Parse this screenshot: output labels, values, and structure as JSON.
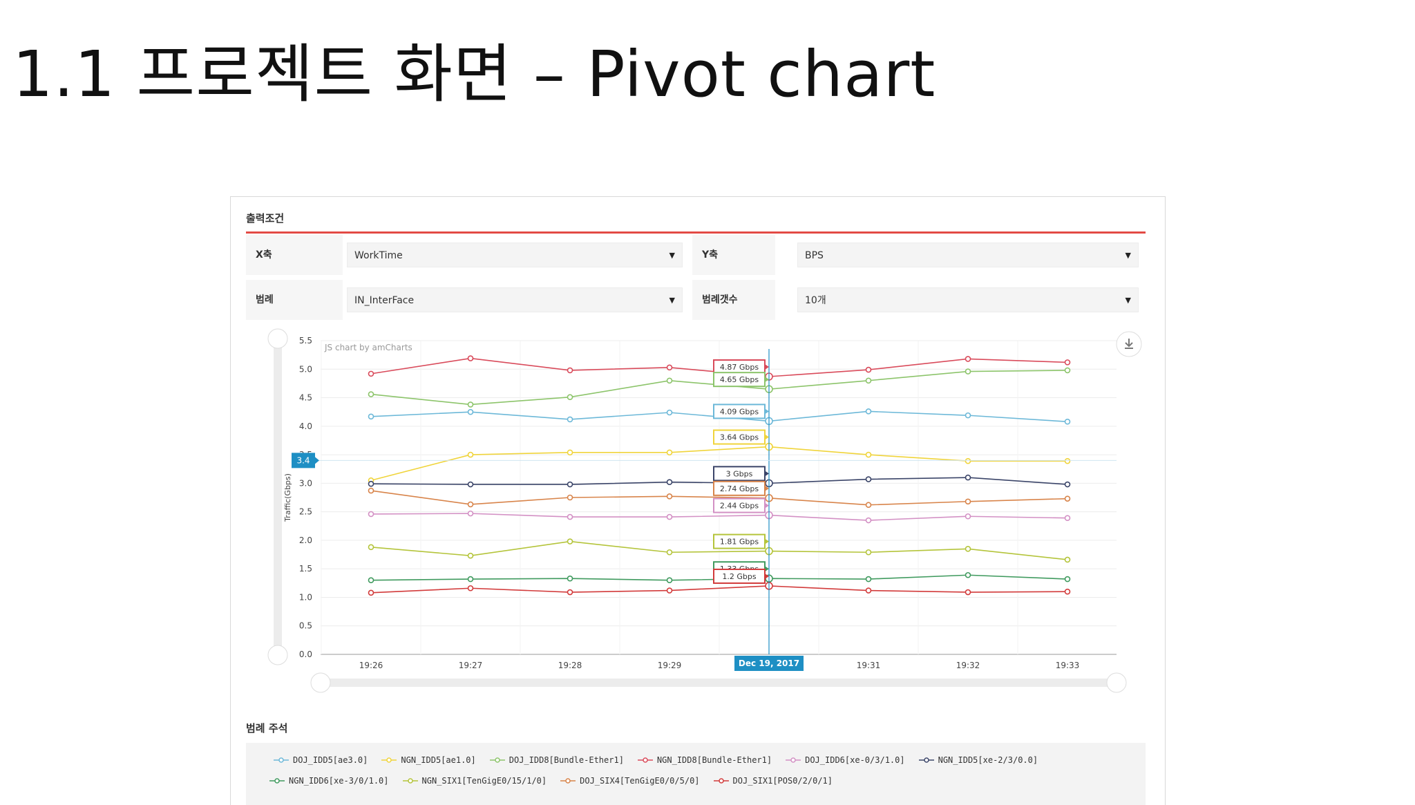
{
  "slide": {
    "title": "1.1 프로젝트 화면 – Pivot chart"
  },
  "conditions": {
    "section_title": "출력조건",
    "x_axis_label": "X축",
    "x_axis_value": "WorkTime",
    "y_axis_label": "Y축",
    "y_axis_value": "BPS",
    "legend_label": "범례",
    "legend_value": "IN_InterFace",
    "legend_count_label": "범례갯수",
    "legend_count_value": "10개"
  },
  "chart_data": {
    "type": "line",
    "watermark": "JS chart by amCharts",
    "ylabel": "Traffic(Gbps)",
    "ylim": [
      0,
      5.5
    ],
    "yticks": [
      "0.0",
      "0.5",
      "1.0",
      "1.5",
      "2.0",
      "2.5",
      "3.0",
      "3.5",
      "4.0",
      "4.5",
      "5.0",
      "5.5"
    ],
    "categories": [
      "19:26",
      "19:27",
      "19:28",
      "19:29",
      "19:30",
      "19:31",
      "19:32",
      "19:33"
    ],
    "cursor_index": 4,
    "cursor_label": "Dec 19, 2017",
    "cursor_y_value": "3.4",
    "series": [
      {
        "name": "DOJ_IDD5[ae3.0]",
        "color": "#6cb8d8",
        "values": [
          4.17,
          4.25,
          4.12,
          4.24,
          4.09,
          4.26,
          4.19,
          4.08
        ],
        "label": "4.09 Gbps"
      },
      {
        "name": "NGN_IDD5[ae1.0]",
        "color": "#f0d43a",
        "values": [
          3.05,
          3.5,
          3.54,
          3.54,
          3.64,
          3.5,
          3.39,
          3.39
        ],
        "label": "3.64 Gbps"
      },
      {
        "name": "DOJ_IDD8[Bundle-Ether1]",
        "color": "#8cc46a",
        "values": [
          4.56,
          4.38,
          4.51,
          4.8,
          4.65,
          4.8,
          4.96,
          4.98
        ],
        "label": "4.65 Gbps"
      },
      {
        "name": "NGN_IDD8[Bundle-Ether1]",
        "color": "#d94a5a",
        "values": [
          4.92,
          5.19,
          4.98,
          5.03,
          4.87,
          4.99,
          5.18,
          5.12
        ],
        "label": "4.87 Gbps"
      },
      {
        "name": "DOJ_IDD6[xe-0/3/1.0]",
        "color": "#d390c4",
        "values": [
          2.46,
          2.47,
          2.41,
          2.41,
          2.44,
          2.35,
          2.42,
          2.39
        ],
        "label": "2.44 Gbps"
      },
      {
        "name": "NGN_IDD5[xe-2/3/0.0]",
        "color": "#3a4468",
        "values": [
          2.99,
          2.98,
          2.98,
          3.02,
          3.0,
          3.07,
          3.1,
          2.98
        ],
        "label": "3 Gbps"
      },
      {
        "name": "NGN_IDD6[xe-3/0/1.0]",
        "color": "#3f9a5e",
        "values": [
          1.3,
          1.32,
          1.33,
          1.3,
          1.33,
          1.32,
          1.39,
          1.32
        ],
        "label": "1.33 Gbps"
      },
      {
        "name": "NGN_SIX1[TenGigE0/15/1/0]",
        "color": "#b4c43a",
        "values": [
          1.88,
          1.73,
          1.98,
          1.79,
          1.81,
          1.79,
          1.85,
          1.66
        ],
        "label": "1.81 Gbps"
      },
      {
        "name": "DOJ_SIX4[TenGigE0/0/5/0]",
        "color": "#d8844a",
        "values": [
          2.87,
          2.63,
          2.75,
          2.77,
          2.74,
          2.62,
          2.68,
          2.73
        ],
        "label": "2.74 Gbps"
      },
      {
        "name": "DOJ_SIX1[POS0/2/0/1]",
        "color": "#d23a3a",
        "values": [
          1.08,
          1.16,
          1.09,
          1.12,
          1.2,
          1.12,
          1.09,
          1.1
        ],
        "label": "1.2 Gbps"
      }
    ]
  },
  "legend": {
    "title": "범례 주석"
  },
  "icons": {
    "download": "download-icon",
    "scroll_handle": "scroll-handle-icon"
  }
}
